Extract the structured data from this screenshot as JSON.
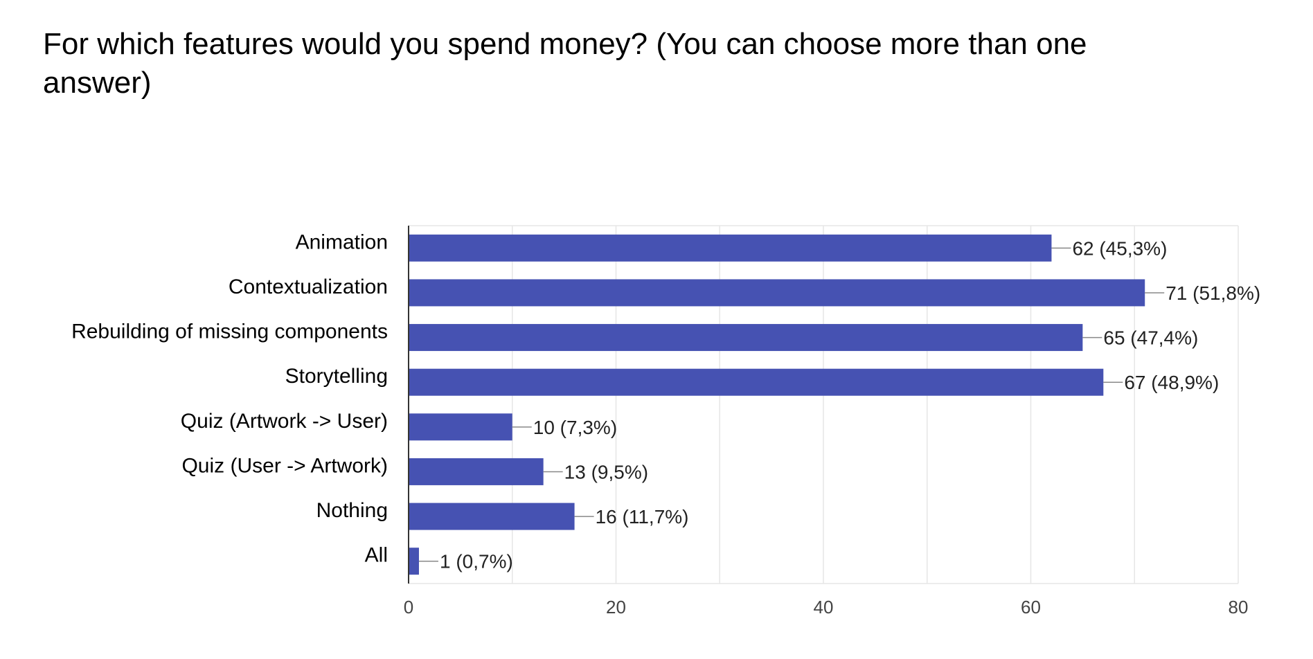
{
  "title": "For which features would you spend money? (You can choose more than one answer)",
  "colors": {
    "bar": "#4652b2",
    "grid": "#e6e6e6",
    "axis": "#333333",
    "leader": "#888888"
  },
  "chart_data": {
    "type": "bar",
    "orientation": "horizontal",
    "title": "For which features would you spend money? (You can choose more than one answer)",
    "categories": [
      "Animation",
      "Contextualization",
      "Rebuilding of missing components",
      "Storytelling",
      "Quiz (Artwork -> User)",
      "Quiz (User -> Artwork)",
      "Nothing",
      "All"
    ],
    "values": [
      62,
      71,
      65,
      67,
      10,
      13,
      16,
      1
    ],
    "data_labels": [
      "62 (45,3%)",
      "71 (51,8%)",
      "65 (47,4%)",
      "67 (48,9%)",
      "10 (7,3%)",
      "13 (9,5%)",
      "16 (11,7%)",
      "1 (0,7%)"
    ],
    "xlim": [
      0,
      80
    ],
    "xticks": [
      "0",
      "20",
      "40",
      "60",
      "80"
    ],
    "grid": true,
    "legend": "none"
  }
}
